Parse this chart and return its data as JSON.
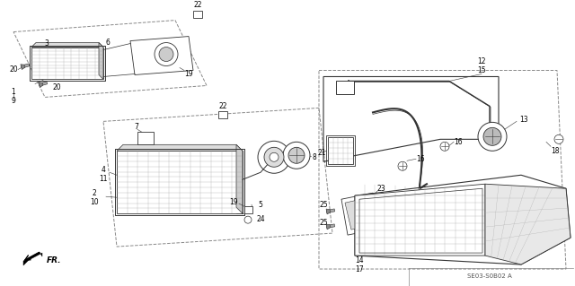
{
  "bg_color": "#ffffff",
  "diagram_code": "SE03-S0B02 A",
  "line_color": "#333333",
  "gray": "#666666"
}
